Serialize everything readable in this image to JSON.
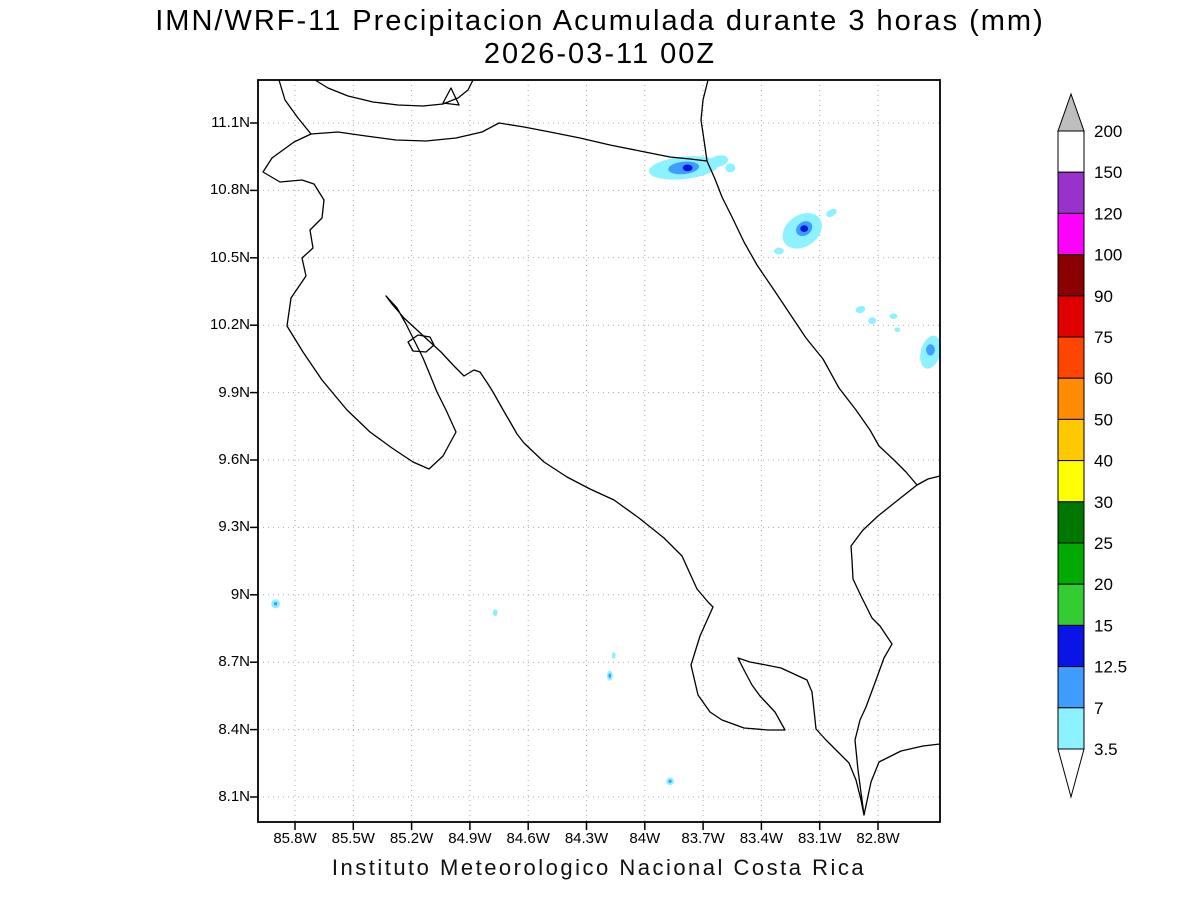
{
  "title": {
    "line1": "IMN/WRF-11 Precipitacion Acumulada durante 3 horas (mm)",
    "line2": "2026-03-11 00Z"
  },
  "footer": "Instituto Meteorologico Nacional Costa Rica",
  "axes": {
    "y_ticks": [
      "11.1N",
      "10.8N",
      "10.5N",
      "10.2N",
      "9.9N",
      "9.6N",
      "9.3N",
      "9N",
      "8.7N",
      "8.4N",
      "8.1N"
    ],
    "x_ticks": [
      "85.8W",
      "85.5W",
      "85.2W",
      "84.9W",
      "84.6W",
      "84.3W",
      "84W",
      "83.7W",
      "83.4W",
      "83.1W",
      "82.8W"
    ]
  },
  "colorbar": {
    "levels": [
      "3.5",
      "7",
      "12.5",
      "15",
      "20",
      "25",
      "30",
      "40",
      "50",
      "60",
      "75",
      "90",
      "100",
      "120",
      "150",
      "200"
    ],
    "bin_colors": [
      "#8CF2FF",
      "#3E9DFF",
      "#0A14E6",
      "#33CC33",
      "#00AA00",
      "#007700",
      "#FFFF00",
      "#FFC800",
      "#FF8C00",
      "#FF4600",
      "#E10000",
      "#8B0000",
      "#FF00FF",
      "#9932CC",
      "#FFFFFF"
    ],
    "over_color": "#BEBEBE",
    "under_color": "#FFFFFF"
  },
  "chart_data": {
    "type": "heatmap",
    "title": "IMN/WRF-11 Precipitacion Acumulada durante 3 horas (mm)",
    "subtitle": "2026-03-11 00Z",
    "region": "Costa Rica",
    "units": "mm",
    "lon_range_west_deg": [
      86.0,
      82.5
    ],
    "lat_range_north_deg": [
      8.0,
      11.3
    ],
    "levels_mm": [
      3.5,
      7,
      12.5,
      15,
      20,
      25,
      30,
      40,
      50,
      60,
      75,
      90,
      100,
      120,
      150,
      200
    ],
    "legend_position": "right",
    "grid": "dotted",
    "features": [
      {
        "lon_w": 83.8,
        "lat_n": 10.9,
        "value_mm": 3.5,
        "w_deg": 0.36,
        "h_deg": 0.1,
        "rot_deg": -6
      },
      {
        "lon_w": 83.62,
        "lat_n": 10.93,
        "value_mm": 3.5,
        "w_deg": 0.1,
        "h_deg": 0.05,
        "rot_deg": -15
      },
      {
        "lon_w": 83.56,
        "lat_n": 10.9,
        "value_mm": 3.5,
        "w_deg": 0.05,
        "h_deg": 0.04,
        "rot_deg": 0
      },
      {
        "lon_w": 83.8,
        "lat_n": 10.9,
        "value_mm": 7,
        "w_deg": 0.16,
        "h_deg": 0.055,
        "rot_deg": -6
      },
      {
        "lon_w": 83.78,
        "lat_n": 10.9,
        "value_mm": 12.5,
        "w_deg": 0.05,
        "h_deg": 0.03,
        "rot_deg": 0
      },
      {
        "lon_w": 83.19,
        "lat_n": 10.62,
        "value_mm": 3.5,
        "w_deg": 0.22,
        "h_deg": 0.14,
        "rot_deg": -35
      },
      {
        "lon_w": 83.31,
        "lat_n": 10.53,
        "value_mm": 3.5,
        "w_deg": 0.05,
        "h_deg": 0.03,
        "rot_deg": 0
      },
      {
        "lon_w": 83.04,
        "lat_n": 10.7,
        "value_mm": 3.5,
        "w_deg": 0.06,
        "h_deg": 0.03,
        "rot_deg": -30
      },
      {
        "lon_w": 83.18,
        "lat_n": 10.63,
        "value_mm": 7,
        "w_deg": 0.09,
        "h_deg": 0.06,
        "rot_deg": -35
      },
      {
        "lon_w": 83.18,
        "lat_n": 10.63,
        "value_mm": 12.5,
        "w_deg": 0.04,
        "h_deg": 0.03,
        "rot_deg": 0
      },
      {
        "lon_w": 82.89,
        "lat_n": 10.27,
        "value_mm": 3.5,
        "w_deg": 0.05,
        "h_deg": 0.03,
        "rot_deg": -20
      },
      {
        "lon_w": 82.83,
        "lat_n": 10.22,
        "value_mm": 3.5,
        "w_deg": 0.04,
        "h_deg": 0.03,
        "rot_deg": 0
      },
      {
        "lon_w": 82.72,
        "lat_n": 10.24,
        "value_mm": 3.5,
        "w_deg": 0.04,
        "h_deg": 0.025,
        "rot_deg": 0
      },
      {
        "lon_w": 82.7,
        "lat_n": 10.18,
        "value_mm": 3.5,
        "w_deg": 0.03,
        "h_deg": 0.02,
        "rot_deg": 0
      },
      {
        "lon_w": 82.53,
        "lat_n": 10.08,
        "value_mm": 3.5,
        "w_deg": 0.1,
        "h_deg": 0.15,
        "rot_deg": 15
      },
      {
        "lon_w": 82.53,
        "lat_n": 10.09,
        "value_mm": 7,
        "w_deg": 0.045,
        "h_deg": 0.05,
        "rot_deg": 0
      },
      {
        "lon_w": 85.9,
        "lat_n": 8.96,
        "value_mm": 3.5,
        "w_deg": 0.045,
        "h_deg": 0.04,
        "rot_deg": 0
      },
      {
        "lon_w": 85.9,
        "lat_n": 8.96,
        "value_mm": 7,
        "w_deg": 0.018,
        "h_deg": 0.016,
        "rot_deg": 0
      },
      {
        "lon_w": 84.77,
        "lat_n": 8.92,
        "value_mm": 3.5,
        "w_deg": 0.025,
        "h_deg": 0.03,
        "rot_deg": 0
      },
      {
        "lon_w": 84.16,
        "lat_n": 8.73,
        "value_mm": 3.5,
        "w_deg": 0.02,
        "h_deg": 0.03,
        "rot_deg": 0
      },
      {
        "lon_w": 84.18,
        "lat_n": 8.64,
        "value_mm": 3.5,
        "w_deg": 0.03,
        "h_deg": 0.045,
        "rot_deg": 0
      },
      {
        "lon_w": 84.18,
        "lat_n": 8.64,
        "value_mm": 7,
        "w_deg": 0.013,
        "h_deg": 0.02,
        "rot_deg": 0
      },
      {
        "lon_w": 83.87,
        "lat_n": 8.17,
        "value_mm": 3.5,
        "w_deg": 0.04,
        "h_deg": 0.035,
        "rot_deg": -20
      },
      {
        "lon_w": 83.87,
        "lat_n": 8.17,
        "value_mm": 7,
        "w_deg": 0.016,
        "h_deg": 0.015,
        "rot_deg": 0
      }
    ]
  }
}
